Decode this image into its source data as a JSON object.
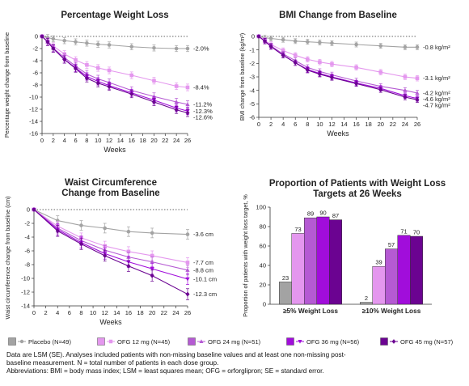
{
  "chart_data": [
    {
      "type": "line",
      "title": "Percentage Weight Loss",
      "xlabel": "Weeks",
      "ylabel": "Percentage weight change from baseline",
      "x": [
        0,
        1,
        2,
        4,
        6,
        8,
        10,
        12,
        16,
        20,
        24,
        26
      ],
      "xticks": [
        0,
        2,
        4,
        6,
        8,
        10,
        12,
        14,
        16,
        18,
        20,
        22,
        24,
        26
      ],
      "ylim": [
        -16,
        0
      ],
      "yticks": [
        0,
        -2,
        -4,
        -6,
        -8,
        -10,
        -12,
        -14,
        -16
      ],
      "reference_line": 0,
      "series": [
        {
          "group": "placebo",
          "values": [
            0,
            -0.2,
            -0.4,
            -0.7,
            -0.9,
            -1.1,
            -1.3,
            -1.4,
            -1.7,
            -1.9,
            -2.0,
            -2.0
          ],
          "err": 0.5
        },
        {
          "group": "ofg12",
          "values": [
            0,
            -0.8,
            -1.6,
            -2.9,
            -3.9,
            -4.7,
            -5.2,
            -5.6,
            -6.4,
            -7.3,
            -8.2,
            -8.4
          ],
          "err": 0.55
        },
        {
          "group": "ofg24",
          "values": [
            0,
            -0.9,
            -1.9,
            -3.5,
            -4.9,
            -6.2,
            -7.0,
            -7.6,
            -8.9,
            -9.9,
            -10.8,
            -11.2
          ],
          "err": 0.6
        },
        {
          "group": "ofg36",
          "values": [
            0,
            -0.9,
            -2.0,
            -3.8,
            -5.2,
            -6.6,
            -7.4,
            -8.1,
            -9.3,
            -10.5,
            -11.8,
            -12.3
          ],
          "err": 0.6
        },
        {
          "group": "ofg45",
          "values": [
            0,
            -0.9,
            -2.0,
            -3.8,
            -5.3,
            -6.9,
            -7.7,
            -8.3,
            -9.5,
            -10.8,
            -12.1,
            -12.6
          ],
          "err": 0.6
        }
      ],
      "end_labels": [
        "-2.0%",
        "-8.4%",
        "-11.2%",
        "-12.3%",
        "-12.6%"
      ]
    },
    {
      "type": "line",
      "title": "BMI Change from Baseline",
      "xlabel": "Weeks",
      "ylabel": "BMI change from baseline (kg/m²)",
      "x": [
        0,
        1,
        2,
        4,
        6,
        8,
        10,
        12,
        16,
        20,
        24,
        26
      ],
      "xticks": [
        0,
        2,
        4,
        6,
        8,
        10,
        12,
        14,
        16,
        18,
        20,
        22,
        24,
        26
      ],
      "ylim": [
        -6,
        0
      ],
      "yticks": [
        0,
        -1,
        -2,
        -3,
        -4,
        -5,
        -6
      ],
      "reference_line": 0,
      "series": [
        {
          "group": "placebo",
          "values": [
            0,
            -0.1,
            -0.15,
            -0.25,
            -0.35,
            -0.4,
            -0.45,
            -0.5,
            -0.6,
            -0.7,
            -0.8,
            -0.8
          ],
          "err": 0.18
        },
        {
          "group": "ofg12",
          "values": [
            0,
            -0.3,
            -0.6,
            -1.05,
            -1.4,
            -1.7,
            -1.9,
            -2.05,
            -2.3,
            -2.65,
            -3.0,
            -3.1
          ],
          "err": 0.2
        },
        {
          "group": "ofg24",
          "values": [
            0,
            -0.35,
            -0.7,
            -1.3,
            -1.8,
            -2.3,
            -2.6,
            -2.85,
            -3.3,
            -3.7,
            -4.0,
            -4.2
          ],
          "err": 0.2
        },
        {
          "group": "ofg36",
          "values": [
            0,
            -0.35,
            -0.75,
            -1.4,
            -1.95,
            -2.45,
            -2.75,
            -3.0,
            -3.45,
            -3.85,
            -4.4,
            -4.6
          ],
          "err": 0.2
        },
        {
          "group": "ofg45",
          "values": [
            0,
            -0.35,
            -0.75,
            -1.4,
            -1.95,
            -2.5,
            -2.8,
            -3.05,
            -3.5,
            -3.95,
            -4.5,
            -4.7
          ],
          "err": 0.2
        }
      ],
      "end_labels": [
        "-0.8 kg/m²",
        "-3.1 kg/m²",
        "-4.2 kg/m²",
        "-4.6 kg/m²",
        "-4.7 kg/m²"
      ]
    },
    {
      "type": "line",
      "title": "Waist Circumference",
      "subtitle": "Change from Baseline",
      "xlabel": "Weeks",
      "ylabel": "Waist circumference change from baseline (cm)",
      "x": [
        0,
        4,
        8,
        12,
        16,
        20,
        26
      ],
      "xticks": [
        0,
        2,
        4,
        6,
        8,
        10,
        12,
        14,
        16,
        18,
        20,
        22,
        24,
        26
      ],
      "ylim": [
        -14,
        0
      ],
      "yticks": [
        0,
        -2,
        -4,
        -6,
        -8,
        -10,
        -12,
        -14
      ],
      "reference_line": 0,
      "series": [
        {
          "group": "placebo",
          "values": [
            0,
            -1.6,
            -2.3,
            -2.7,
            -3.2,
            -3.4,
            -3.6
          ],
          "err": 0.7
        },
        {
          "group": "ofg12",
          "values": [
            0,
            -2.4,
            -4.1,
            -5.3,
            -6.1,
            -6.7,
            -7.7
          ],
          "err": 0.7
        },
        {
          "group": "ofg24",
          "values": [
            0,
            -2.7,
            -4.5,
            -5.9,
            -6.9,
            -7.6,
            -8.8
          ],
          "err": 0.7
        },
        {
          "group": "ofg36",
          "values": [
            0,
            -2.9,
            -4.8,
            -6.4,
            -7.6,
            -8.6,
            -10.1
          ],
          "err": 0.8
        },
        {
          "group": "ofg45",
          "values": [
            0,
            -3.1,
            -5.0,
            -6.7,
            -8.2,
            -9.6,
            -12.3
          ],
          "err": 0.8
        }
      ],
      "end_labels": [
        "-3.6 cm",
        "-7.7 cm",
        "-8.8 cm",
        "-10.1 cm",
        "-12.3 cm"
      ]
    },
    {
      "type": "bar",
      "title": "Proportion of Patients with Weight Loss",
      "subtitle": "Targets at 26 Weeks",
      "ylabel": "Proportion of patients with weight loss target, %",
      "categories": [
        "≥5% Weight Loss",
        "≥10% Weight Loss"
      ],
      "ylim": [
        0,
        100
      ],
      "yticks": [
        0,
        20,
        40,
        60,
        80,
        100
      ],
      "series": [
        {
          "group": "placebo",
          "values": [
            23,
            2
          ]
        },
        {
          "group": "ofg12",
          "values": [
            73,
            39
          ]
        },
        {
          "group": "ofg24",
          "values": [
            89,
            57
          ]
        },
        {
          "group": "ofg36",
          "values": [
            90,
            71
          ]
        },
        {
          "group": "ofg45",
          "values": [
            87,
            70
          ]
        }
      ]
    }
  ],
  "groups": [
    {
      "id": "placebo",
      "name": "Placebo (N=49)",
      "color": "#a3a3a3",
      "marker": "circle"
    },
    {
      "id": "ofg12",
      "name": "OFG 12 mg (N=45)",
      "color": "#e497ee",
      "marker": "square"
    },
    {
      "id": "ofg24",
      "name": "OFG 24 mg (N=51)",
      "color": "#b55ad3",
      "marker": "triangle-up"
    },
    {
      "id": "ofg36",
      "name": "OFG 36 mg (N=56)",
      "color": "#a10ddb",
      "marker": "triangle-down"
    },
    {
      "id": "ofg45",
      "name": "OFG 45 mg (N=57)",
      "color": "#6b0391",
      "marker": "diamond"
    }
  ],
  "footnote": {
    "line1": "Data are LSM (SE). Analyses included patients with non-missing baseline values and at least one non-missing post-",
    "line2": "baseline measurement.  N = total number of patients in each dose group.",
    "line3": "Abbreviations: BMI = body mass index; LSM = least squares mean; OFG = orforglipron; SE = standard error."
  }
}
